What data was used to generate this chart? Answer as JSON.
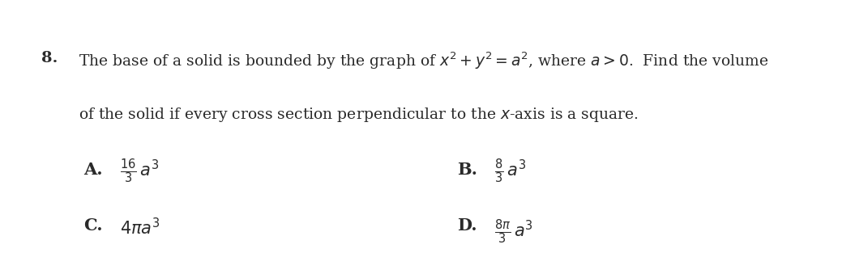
{
  "background_color": "#ffffff",
  "question_number": "8.",
  "question_line1": "The base of a solid is bounded by the graph of $x^2 + y^2 = a^2$, where $a > 0$.  Find the volume",
  "question_line2": "of the solid if every cross section perpendicular to the $x$-axis is a square.",
  "option_A_label": "A.",
  "option_A_text": "$\\frac{16}{3}\\, a^3$",
  "option_B_label": "B.",
  "option_B_text": "$\\frac{8}{3}\\, a^3$",
  "option_C_label": "C.",
  "option_C_text": "$4\\pi a^3$",
  "option_D_label": "D.",
  "option_D_text": "$\\frac{8\\pi}{3}\\, a^3$",
  "font_color": "#2a2a2a",
  "fontsize_question": 13.5,
  "fontsize_number": 14,
  "fontsize_options": 15
}
